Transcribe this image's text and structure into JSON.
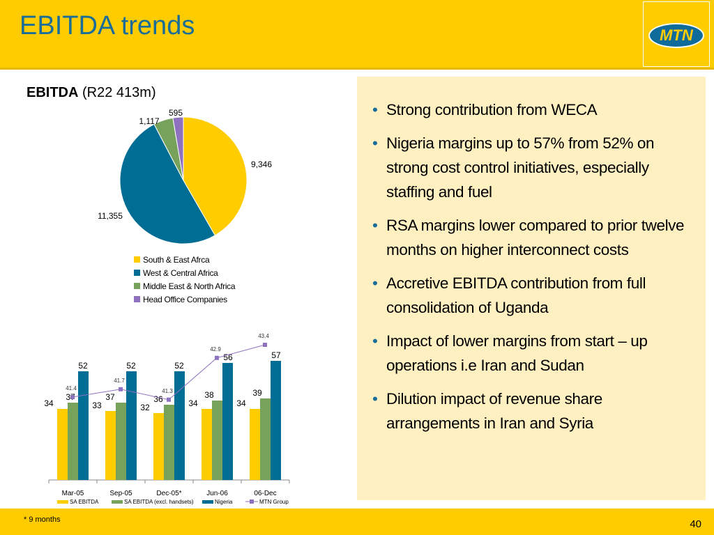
{
  "header": {
    "title": "EBITDA trends",
    "logo_text": "MTN"
  },
  "pie": {
    "title_bold": "EBITDA",
    "title_rest": " (R22 413m)"
  },
  "bullets": [
    "Strong contribution from WECA",
    "Nigeria margins up to 57% from 52% on strong cost control initiatives, especially staffing and fuel",
    "RSA margins lower compared to prior twelve months on higher interconnect costs",
    "Accretive EBITDA contribution from full consolidation of Uganda",
    "Impact of lower margins from start – up operations i.e Iran and Sudan",
    "Dilution impact of revenue share arrangements in Iran and Syria"
  ],
  "footer": {
    "footnote": "*  9 months",
    "page": "40"
  },
  "chart_data": [
    {
      "type": "pie",
      "title": "EBITDA (R22 413m)",
      "labels": [
        "South & East Afrca",
        "West & Central Africa",
        "Middle East & North Africa",
        "Head Office Companies"
      ],
      "values": [
        9346,
        11355,
        1117,
        595
      ],
      "value_labels": [
        "9,346",
        "11,355",
        "1,117",
        "595"
      ],
      "colors": [
        "#FFCC00",
        "#006D94",
        "#76A25C",
        "#8E72C0"
      ],
      "legend": "bottom"
    },
    {
      "type": "bar",
      "categories": [
        "Mar-05",
        "Sep-05",
        "Dec-05*",
        "Jun-06",
        "06-Dec"
      ],
      "series": [
        {
          "name": "SA EBITDA",
          "values": [
            34,
            33,
            32,
            34,
            34
          ],
          "color": "#FFCC00"
        },
        {
          "name": "SA EBITDA (excl. handsets)",
          "values": [
            37,
            37,
            36,
            38,
            39
          ],
          "color": "#76A25C"
        },
        {
          "name": "Nigeria",
          "values": [
            52,
            52,
            52,
            56,
            57
          ],
          "color": "#006D94"
        }
      ],
      "line_series": {
        "name": "MTN Group",
        "values": [
          41.4,
          41.7,
          41.3,
          42.9,
          43.4
        ],
        "value_labels": [
          "41.4",
          "41.7",
          "41.3",
          "42.9",
          "43.4"
        ],
        "color": "#8E72C0"
      },
      "ylim": [
        0,
        60
      ],
      "line_ylim": [
        39,
        45
      ],
      "legend": "bottom",
      "grid": false
    }
  ]
}
